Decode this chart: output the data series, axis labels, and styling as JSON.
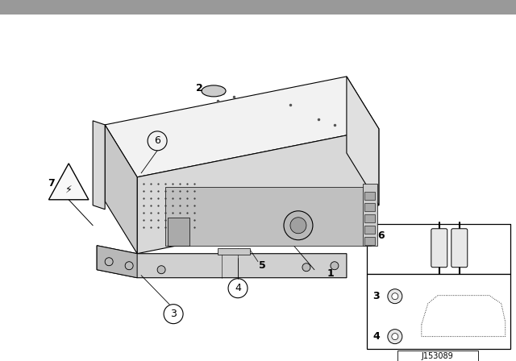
{
  "bg_color": "#ffffff",
  "line_color": "#000000",
  "text_color": "#000000",
  "diagram_id": "J153089",
  "top_bar_color": "#888888",
  "unit_face_color": "#e8e8e8",
  "unit_side_color": "#c8c8c8",
  "unit_top_color": "#f0f0f0",
  "inset_bg": "#ffffff"
}
